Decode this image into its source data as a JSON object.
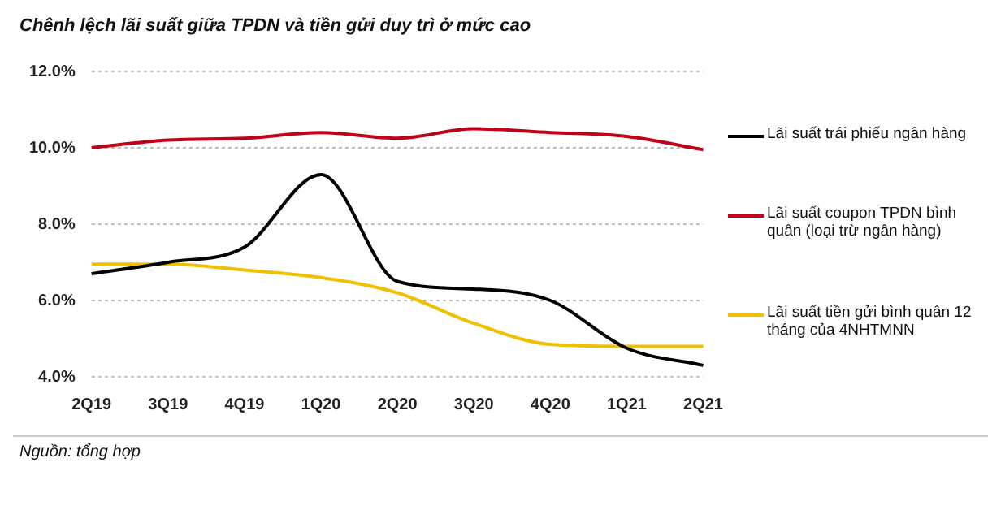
{
  "chart_data": {
    "type": "line",
    "title": "Chênh lệch lãi suất giữa TPDN và tiền gửi duy trì ở mức cao",
    "categories": [
      "2Q19",
      "3Q19",
      "4Q19",
      "1Q20",
      "2Q20",
      "3Q20",
      "4Q20",
      "1Q21",
      "2Q21"
    ],
    "series": [
      {
        "name": "Lãi suất trái phiếu ngân hàng",
        "color": "#000000",
        "values": [
          6.7,
          7.0,
          7.4,
          9.3,
          6.5,
          6.3,
          6.0,
          4.75,
          4.3
        ]
      },
      {
        "name": "Lãi suất coupon TPDN bình quân (loại trừ ngân hàng)",
        "color": "#c00018",
        "values": [
          10.0,
          10.2,
          10.25,
          10.4,
          10.25,
          10.5,
          10.4,
          10.3,
          9.95
        ]
      },
      {
        "name": "Lãi suất tiền gửi bình quân 12 tháng của 4NHTMNN",
        "color": "#f0c000",
        "values": [
          6.95,
          6.95,
          6.8,
          6.6,
          6.2,
          5.4,
          4.85,
          4.8,
          4.8
        ]
      }
    ],
    "ylim": [
      4,
      12
    ],
    "yticks": [
      {
        "value": 4,
        "label": "4.0%"
      },
      {
        "value": 6,
        "label": "6.0%"
      },
      {
        "value": 8,
        "label": "8.0%"
      },
      {
        "value": 10,
        "label": "10.0%"
      },
      {
        "value": 12,
        "label": "12.0%"
      }
    ],
    "grid": "y",
    "legend": "right",
    "marker": "none",
    "line_style": "solid",
    "annotations": [
      "Nguồn: tổng hợp"
    ]
  }
}
